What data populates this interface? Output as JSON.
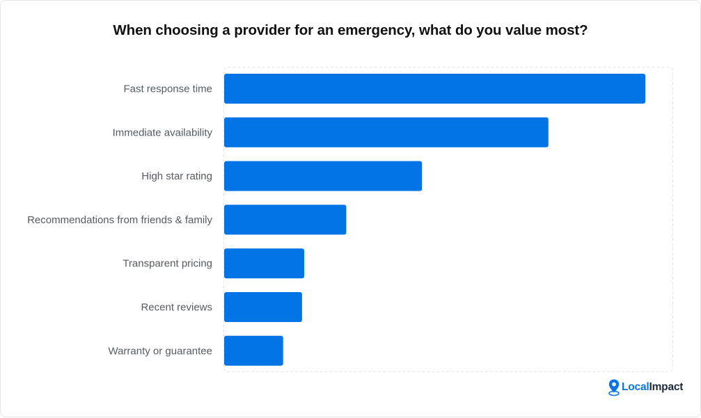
{
  "chart_data": {
    "type": "bar",
    "orientation": "horizontal",
    "title": "When choosing a provider for an emergency, what do you value most?",
    "categories": [
      "Fast response time",
      "Immediate availability",
      "High star rating",
      "Recommendations from friends & family",
      "Transparent pricing",
      "Recent reviews",
      "Warranty or guarantee"
    ],
    "values": [
      100,
      77,
      47,
      29,
      19,
      18.5,
      14
    ],
    "xlim": [
      0,
      100
    ],
    "grid": false,
    "bar_color": "#0274e6"
  },
  "brand": {
    "name_part1": "Local",
    "name_part2": "Impact",
    "icon": "location-pin-icon",
    "colors": {
      "primary": "#0a74e6",
      "dark": "#1b2a3a"
    }
  }
}
